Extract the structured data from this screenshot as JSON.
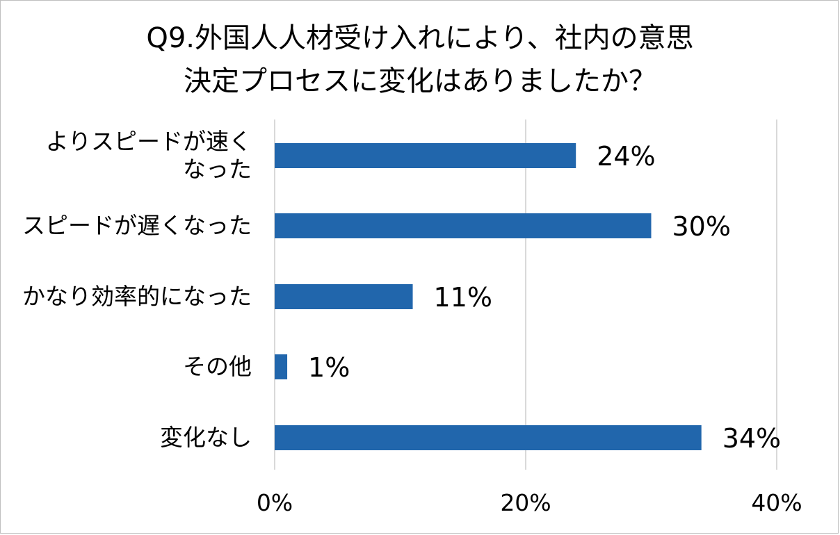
{
  "chart_data": {
    "type": "bar",
    "orientation": "horizontal",
    "title_lines": [
      "Q9.外国人人材受け入れにより、社内の意思",
      "決定プロセスに変化はありましたか？"
    ],
    "categories": [
      [
        "よりスピードが速く",
        "なった"
      ],
      [
        "スピードが遅くなった"
      ],
      [
        "かなり効率的になった"
      ],
      [
        "その他"
      ],
      [
        "変化なし"
      ]
    ],
    "values": [
      24,
      30,
      11,
      1,
      34
    ],
    "value_labels": [
      "24%",
      "30%",
      "11%",
      "1%",
      "34%"
    ],
    "xlim": [
      0,
      40
    ],
    "x_ticks": [
      0,
      20,
      40
    ],
    "x_tick_labels": [
      "0%",
      "20%",
      "40%"
    ],
    "grid": true,
    "bar_color": "#2166ac",
    "grid_color": "#d9d9d9"
  }
}
